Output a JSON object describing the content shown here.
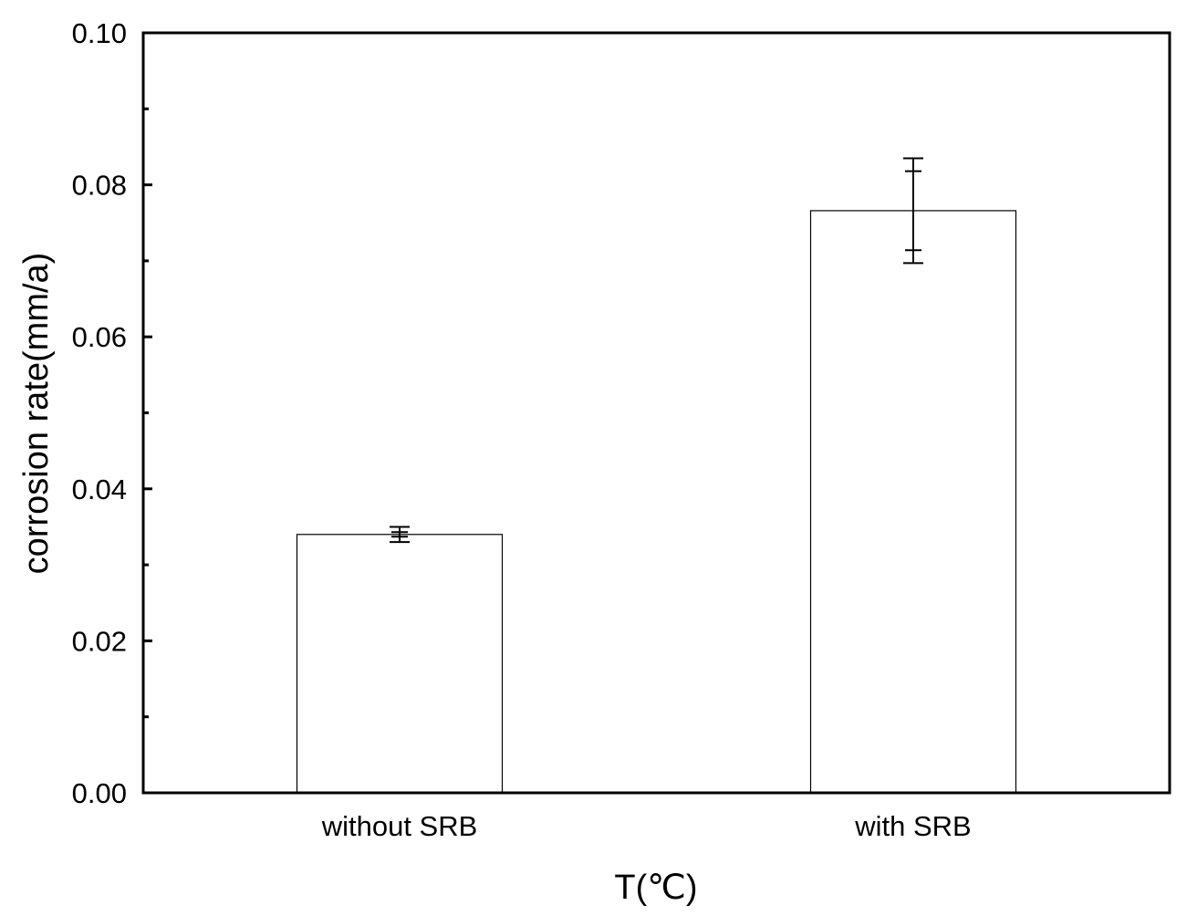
{
  "chart_data": {
    "type": "bar",
    "categories": [
      "without SRB",
      "with SRB"
    ],
    "values": [
      0.034,
      0.0766
    ],
    "error_bars": [
      {
        "lower": 0.033,
        "upper": 0.035,
        "cap_inner_upper": 0.0343,
        "cap_inner_lower": 0.0337
      },
      {
        "lower": 0.0697,
        "upper": 0.0835,
        "cap_inner_upper": 0.0818,
        "cap_inner_lower": 0.0714
      }
    ],
    "xlabel": "T(℃)",
    "ylabel": "corrosion rate(mm/a)",
    "ylim": [
      0,
      0.1
    ],
    "yticks": [
      "0.00",
      "0.02",
      "0.04",
      "0.06",
      "0.08",
      "0.10"
    ],
    "grid": false,
    "bar_fill": "#ffffff",
    "axis_color": "#000000"
  }
}
